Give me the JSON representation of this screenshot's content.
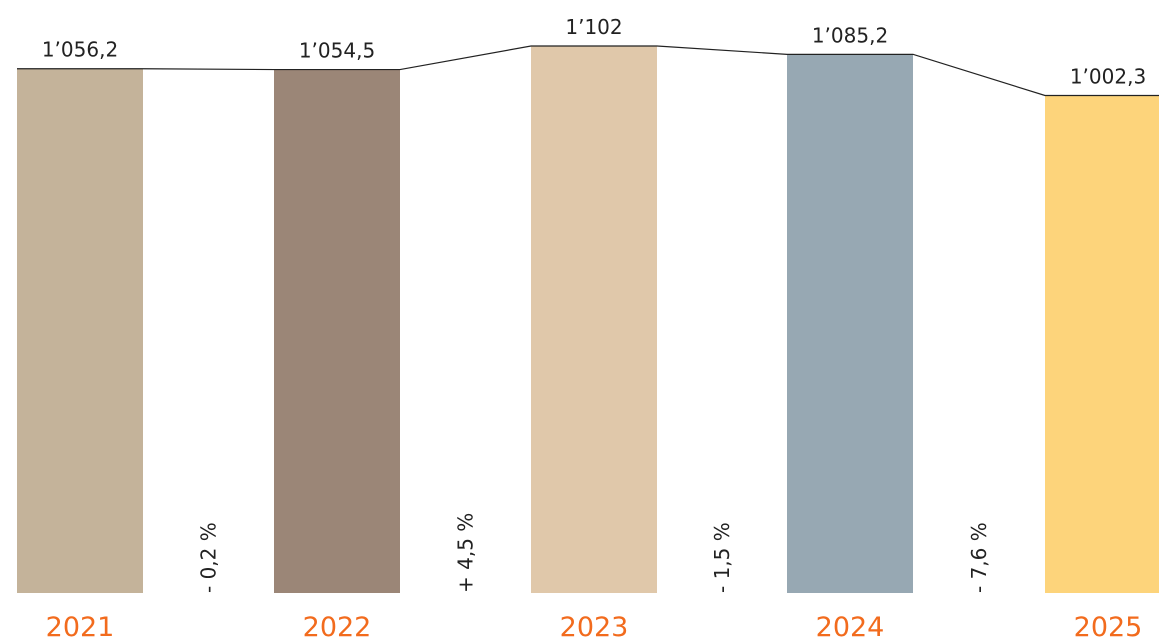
{
  "chart_data": {
    "type": "bar",
    "categories": [
      "2021",
      "2022",
      "2023",
      "2024",
      "2025"
    ],
    "values": [
      1056.2,
      1054.5,
      1102,
      1085.2,
      1002.3
    ],
    "value_labels": [
      "1’056,2",
      "1’054,5",
      "1’102",
      "1’085,2",
      "1’002,3"
    ],
    "changes": [
      "- 0,2 %",
      "+ 4,5 %",
      "- 1,5 %",
      "- 7,6 %"
    ],
    "bar_colors": [
      "#c4b39a",
      "#9b8677",
      "#e0c8aa",
      "#97a8b3",
      "#fdd47b"
    ],
    "year_color": "#f26b1d",
    "connector_color": "#222222",
    "ylim": [
      0,
      1102
    ],
    "grid": false,
    "title": "",
    "xlabel": "",
    "ylabel": ""
  }
}
